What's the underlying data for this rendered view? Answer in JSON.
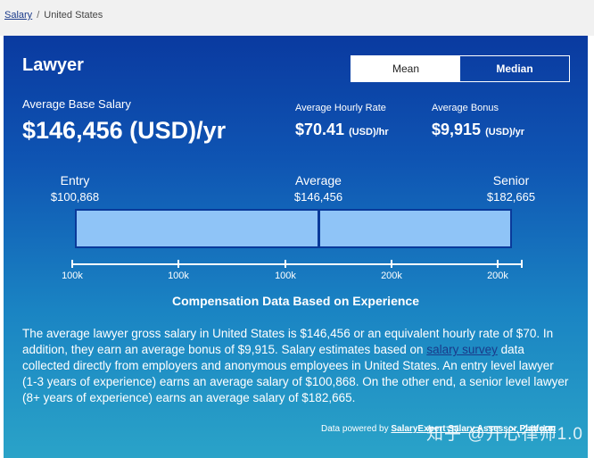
{
  "breadcrumb": {
    "link": "Salary",
    "separator": "/",
    "current": "United States"
  },
  "job_title": "Lawyer",
  "toggle": {
    "mean": "Mean",
    "median": "Median"
  },
  "average": {
    "label": "Average Base Salary",
    "value": "$146,456 (USD)/yr"
  },
  "hourly": {
    "label": "Average Hourly Rate",
    "value": "$70.41",
    "unit": "(USD)/hr"
  },
  "bonus": {
    "label": "Average Bonus",
    "value": "$9,915",
    "unit": "(USD)/yr"
  },
  "levels": {
    "entry": {
      "label": "Entry",
      "amount": "$100,868"
    },
    "average": {
      "label": "Average",
      "amount": "$146,456"
    },
    "senior": {
      "label": "Senior",
      "amount": "$182,665"
    }
  },
  "axis_ticks": [
    "100k",
    "100k",
    "100k",
    "200k",
    "200k"
  ],
  "comp_heading": "Compensation Data Based on Experience",
  "description": {
    "part1": "The average lawyer gross salary in United States is $146,456 or an equivalent hourly rate of $70. In addition, they earn an average bonus of $9,915. Salary estimates based on ",
    "link": "salary survey",
    "part2": " data collected directly from employers and anonymous employees in United States. An entry level lawyer (1-3 years of experience) earns an average salary of $100,868. On the other end, a senior level lawyer (8+ years of experience) earns an average salary of $182,665."
  },
  "powered": {
    "prefix": "Data powered by ",
    "link": "SalaryExpert Salary Assessor Platform"
  },
  "watermark": "知乎 @开心律师1.0",
  "colors": {
    "panel_top": "#0a3aa0",
    "panel_bottom": "#2aa3c8",
    "bar_fill": "#8fc4f7",
    "bar_border": "#0a3a9a"
  }
}
